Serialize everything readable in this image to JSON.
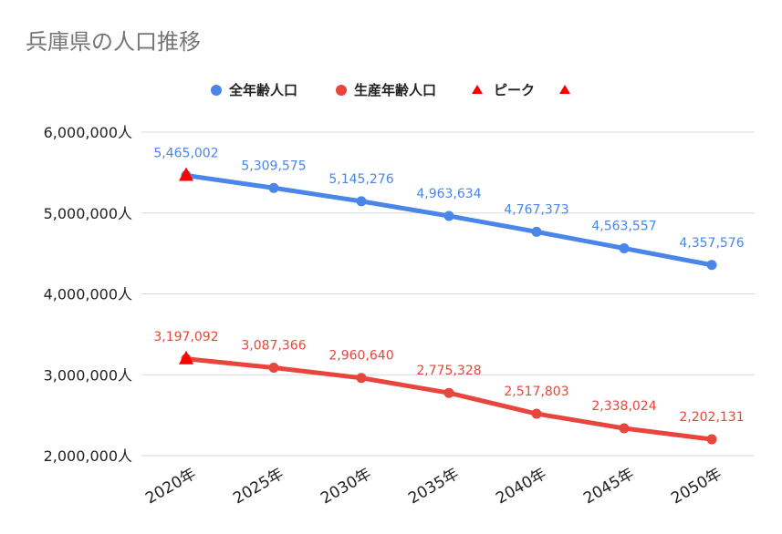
{
  "chart_data": {
    "type": "line",
    "title": "兵庫県の人口推移",
    "categories": [
      "2020年",
      "2025年",
      "2030年",
      "2035年",
      "2040年",
      "2045年",
      "2050年"
    ],
    "y_tick_labels": [
      "6,000,000人",
      "5,000,000人",
      "4,000,000人",
      "3,000,000人",
      "2,000,000人"
    ],
    "ylim": [
      2000000,
      6000000
    ],
    "grid": true,
    "legend_position": "top",
    "series": [
      {
        "name": "全年齢人口",
        "color": "#4a86e8",
        "values": [
          5465002,
          5309575,
          5145276,
          4963634,
          4767373,
          4563557,
          4357576
        ],
        "labels": [
          "5,465,002",
          "5,309,575",
          "5,145,276",
          "4,963,634",
          "4,767,373",
          "4,563,557",
          "4,357,576"
        ]
      },
      {
        "name": "生産年齢人口",
        "color": "#e8453c",
        "values": [
          3197092,
          3087366,
          2960640,
          2775328,
          2517803,
          2338024,
          2202131
        ],
        "labels": [
          "3,197,092",
          "3,087,366",
          "2,960,640",
          "2,775,328",
          "2,517,803",
          "2,338,024",
          "2,202,131"
        ]
      }
    ],
    "peak": {
      "name": "ピーク",
      "color": "#ff0000",
      "marker": "triangle",
      "category": "2020年",
      "values": [
        5465002,
        3197092
      ]
    }
  }
}
